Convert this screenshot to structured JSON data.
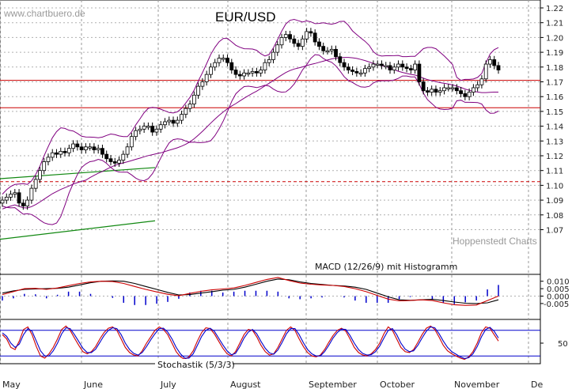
{
  "watermark": "www.chartbuero.de",
  "credit": "Hoppenstedt Charts",
  "chart_data": [
    {
      "type": "candlestick",
      "title": "EUR/USD",
      "ylim": [
        1.06,
        1.225
      ],
      "y_ticks": [
        "1.22",
        "1.21",
        "1.20",
        "1.19",
        "1.18",
        "1.17",
        "1.16",
        "1.15",
        "1.14",
        "1.13",
        "1.12",
        "1.11",
        "1.10",
        "1.09",
        "1.08",
        "1.07"
      ],
      "months": [
        "May",
        "June",
        "July",
        "August",
        "September",
        "October",
        "November",
        "De"
      ],
      "grid": true,
      "horizontal_lines": [
        {
          "value": 1.171,
          "style": "solid",
          "color": "#cc0000"
        },
        {
          "value": 1.1525,
          "style": "solid",
          "color": "#cc0000"
        },
        {
          "value": 1.1025,
          "style": "dashed",
          "color": "#cc0000"
        }
      ],
      "trend_lines": [
        {
          "from": {
            "week": 0.0,
            "value": 1.1045
          },
          "to": {
            "week": 27.0,
            "value": 1.112
          },
          "color": "#118811"
        },
        {
          "from": {
            "week": 0.0,
            "value": 1.0635
          },
          "to": {
            "week": 27.0,
            "value": 1.076
          },
          "color": "#118811"
        }
      ],
      "overlays": [
        "Bollinger upper band",
        "Bollinger lower band",
        "Moving average"
      ],
      "close": [
        1.09,
        1.092,
        1.094,
        1.095,
        1.088,
        1.086,
        1.09,
        1.098,
        1.104,
        1.11,
        1.116,
        1.119,
        1.122,
        1.121,
        1.123,
        1.122,
        1.125,
        1.128,
        1.126,
        1.124,
        1.126,
        1.126,
        1.124,
        1.125,
        1.121,
        1.118,
        1.116,
        1.115,
        1.117,
        1.121,
        1.126,
        1.133,
        1.137,
        1.138,
        1.14,
        1.14,
        1.136,
        1.138,
        1.141,
        1.143,
        1.144,
        1.142,
        1.144,
        1.148,
        1.152,
        1.155,
        1.161,
        1.167,
        1.17,
        1.175,
        1.18,
        1.183,
        1.186,
        1.186,
        1.183,
        1.178,
        1.175,
        1.174,
        1.176,
        1.176,
        1.177,
        1.176,
        1.178,
        1.183,
        1.185,
        1.19,
        1.195,
        1.2,
        1.202,
        1.199,
        1.196,
        1.194,
        1.199,
        1.204,
        1.203,
        1.197,
        1.194,
        1.191,
        1.191,
        1.192,
        1.187,
        1.183,
        1.18,
        1.178,
        1.177,
        1.176,
        1.176,
        1.179,
        1.18,
        1.182,
        1.182,
        1.181,
        1.181,
        1.178,
        1.18,
        1.182,
        1.18,
        1.179,
        1.178,
        1.182,
        1.17,
        1.164,
        1.163,
        1.165,
        1.163,
        1.164,
        1.166,
        1.166,
        1.166,
        1.164,
        1.162,
        1.16,
        1.163,
        1.166,
        1.168,
        1.172,
        1.182,
        1.185,
        1.181,
        1.178
      ]
    },
    {
      "type": "line",
      "title": "MACD (12/26/9) mit Histogramm",
      "ylim": [
        -0.0085,
        0.0135
      ],
      "y_ticks": [
        "0.010",
        "0.005",
        "0.000",
        "-0.005"
      ],
      "series": [
        {
          "color": "#000000",
          "values": [
            0.002,
            0.0035,
            0.0045,
            0.0048,
            0.005,
            0.0052,
            0.006,
            0.0075,
            0.009,
            0.01,
            0.0102,
            0.01,
            0.0085,
            0.0065,
            0.0045,
            0.0025,
            0.0008,
            0.001,
            0.002,
            0.003,
            0.004,
            0.0045,
            0.006,
            0.008,
            0.01,
            0.0115,
            0.011,
            0.0095,
            0.0085,
            0.0078,
            0.0072,
            0.0068,
            0.006,
            0.0045,
            0.002,
            -0.0005,
            -0.0025,
            -0.0028,
            -0.0025,
            -0.0022,
            -0.003,
            -0.004,
            -0.0048,
            -0.005,
            -0.0045,
            -0.0025
          ]
        },
        {
          "color": "#cc0000",
          "values": [
            0.001,
            0.003,
            0.005,
            0.0052,
            0.0045,
            0.0055,
            0.007,
            0.0085,
            0.0095,
            0.01,
            0.0098,
            0.0085,
            0.0065,
            0.0045,
            0.0028,
            0.0012,
            0.0002,
            0.0018,
            0.0032,
            0.0042,
            0.0048,
            0.0055,
            0.0072,
            0.0092,
            0.0112,
            0.0125,
            0.0105,
            0.0088,
            0.008,
            0.0075,
            0.0072,
            0.0065,
            0.005,
            0.003,
            0.0005,
            -0.002,
            -0.0032,
            -0.003,
            -0.0025,
            -0.003,
            -0.0045,
            -0.0058,
            -0.0062,
            -0.006,
            -0.003,
            0.0
          ]
        }
      ]
    },
    {
      "type": "line",
      "title": "Stochastik (5/3/3)",
      "y_ticks": [
        "50"
      ],
      "ylim": [
        0,
        100
      ],
      "horizontal_lines": [
        {
          "value": 80,
          "color": "#0000cc"
        },
        {
          "value": 20,
          "color": "#0000cc"
        }
      ],
      "series": [
        {
          "color": "#cc0000",
          "values": [
            70,
            60,
            40,
            35,
            55,
            82,
            88,
            70,
            42,
            20,
            15,
            25,
            40,
            60,
            82,
            90,
            80,
            62,
            45,
            30,
            25,
            30,
            42,
            60,
            75,
            85,
            88,
            80,
            60,
            40,
            28,
            22,
            20,
            32,
            50,
            65,
            80,
            88,
            82,
            70,
            50,
            30,
            18,
            12,
            18,
            32,
            55,
            75,
            86,
            84,
            72,
            55,
            38,
            25,
            20,
            30,
            50,
            70,
            82,
            80,
            65,
            45,
            30,
            22,
            25,
            40,
            60,
            80,
            88,
            80,
            60,
            42,
            28,
            20,
            18,
            22,
            35,
            52,
            68,
            80,
            85,
            78,
            60,
            40,
            28,
            22,
            20,
            25,
            35,
            50,
            72,
            88,
            80,
            60,
            40,
            30,
            28,
            35,
            52,
            70,
            85,
            90,
            82,
            64,
            45,
            32,
            25,
            20,
            15,
            12,
            18,
            30,
            50,
            75,
            88,
            85,
            70,
            55
          ]
        },
        {
          "color": "#0000cc",
          "values": [
            74,
            66,
            50,
            40,
            48,
            70,
            84,
            78,
            55,
            32,
            20,
            20,
            32,
            50,
            72,
            86,
            84,
            70,
            54,
            38,
            28,
            28,
            36,
            52,
            68,
            80,
            86,
            84,
            70,
            50,
            35,
            26,
            22,
            28,
            42,
            58,
            72,
            84,
            85,
            76,
            60,
            40,
            25,
            15,
            15,
            25,
            45,
            66,
            80,
            85,
            78,
            62,
            46,
            32,
            23,
            26,
            42,
            62,
            76,
            82,
            72,
            54,
            38,
            27,
            24,
            34,
            52,
            72,
            84,
            84,
            70,
            51,
            35,
            25,
            20,
            20,
            30,
            45,
            62,
            75,
            83,
            82,
            68,
            50,
            35,
            26,
            22,
            23,
            30,
            43,
            62,
            80,
            84,
            70,
            50,
            36,
            30,
            32,
            45,
            62,
            78,
            88,
            86,
            72,
            55,
            40,
            30,
            24,
            18,
            14,
            16,
            25,
            42,
            65,
            82,
            87,
            78,
            62
          ]
        }
      ]
    }
  ]
}
